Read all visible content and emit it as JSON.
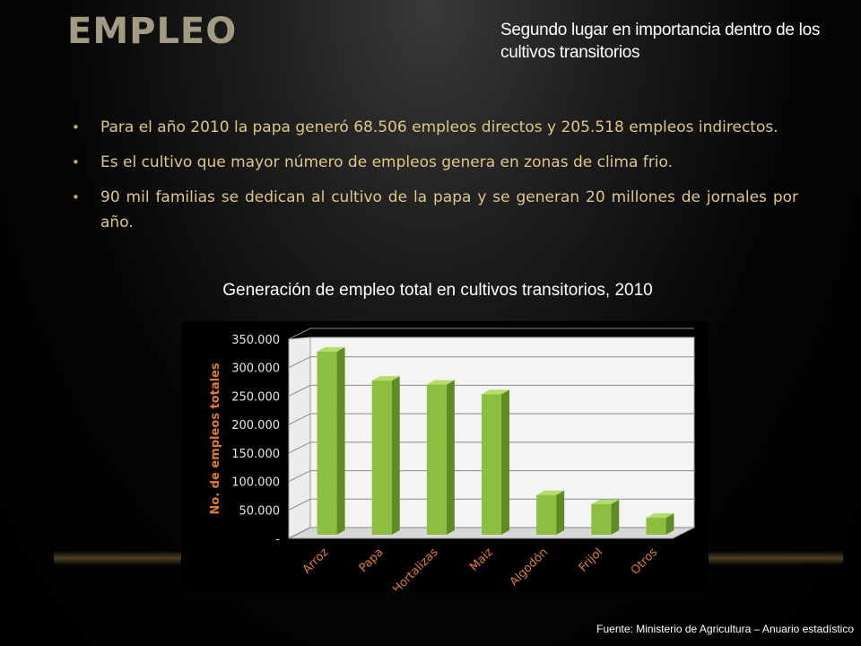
{
  "slide": {
    "title": "EMPLEO",
    "subtitle": "Segundo lugar en importancia dentro de los cultivos transitorios",
    "bullets": [
      "Para el año 2010 la papa generó 68.506 empleos directos y 205.518 empleos indirectos.",
      "Es el cultivo que mayor número de empleos genera en zonas de clima frio.",
      "90 mil familias se dedican al cultivo de la papa y se generan 20 millones de jornales por año."
    ],
    "bullet_glyph": "•",
    "source": "Fuente: Ministerio de Agricultura – Anuario estadístico"
  },
  "colors": {
    "title": "#a39a82",
    "bullet_text": "#e0c684",
    "axis_text": "#e07d2a",
    "bar_front": "#8cbf3f",
    "bar_side": "#5f8a24",
    "bar_top": "#b5dc6a"
  },
  "chart_data": {
    "type": "bar",
    "title": "Generación de empleo total en cultivos transitorios, 2010",
    "xlabel": "",
    "ylabel": "No. de empleos totales",
    "categories": [
      "Arroz",
      "Papa",
      "Hortalizas",
      "Maiz",
      "Algodón",
      "Frijol",
      "Otros"
    ],
    "values": [
      325000,
      274000,
      267000,
      250000,
      73000,
      57000,
      33000
    ],
    "ylim": [
      0,
      350000
    ],
    "yticks": [
      0,
      50000,
      100000,
      150000,
      200000,
      250000,
      300000,
      350000
    ],
    "ytick_labels": [
      "-",
      "50.000",
      "100.000",
      "150.000",
      "200.000",
      "250.000",
      "300.000",
      "350.000"
    ],
    "grid": true,
    "legend": "none",
    "style": "3d"
  }
}
